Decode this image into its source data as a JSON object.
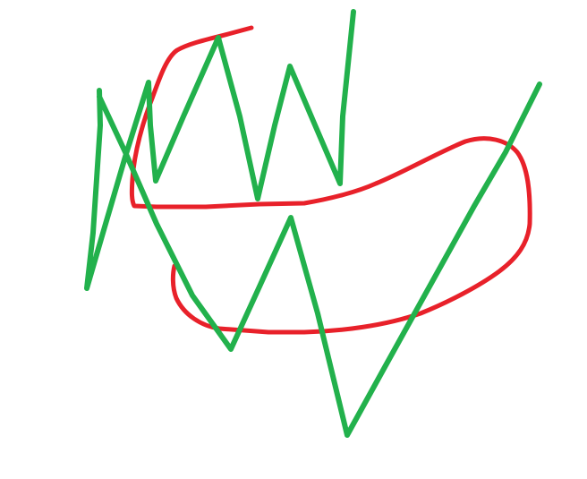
{
  "canvas": {
    "background_color": "#ffffff"
  },
  "strokes": [
    {
      "name": "red-loop-stroke",
      "color": "#e8212a"
    },
    {
      "name": "green-zigzag-stroke",
      "color": "#22b14c"
    }
  ]
}
